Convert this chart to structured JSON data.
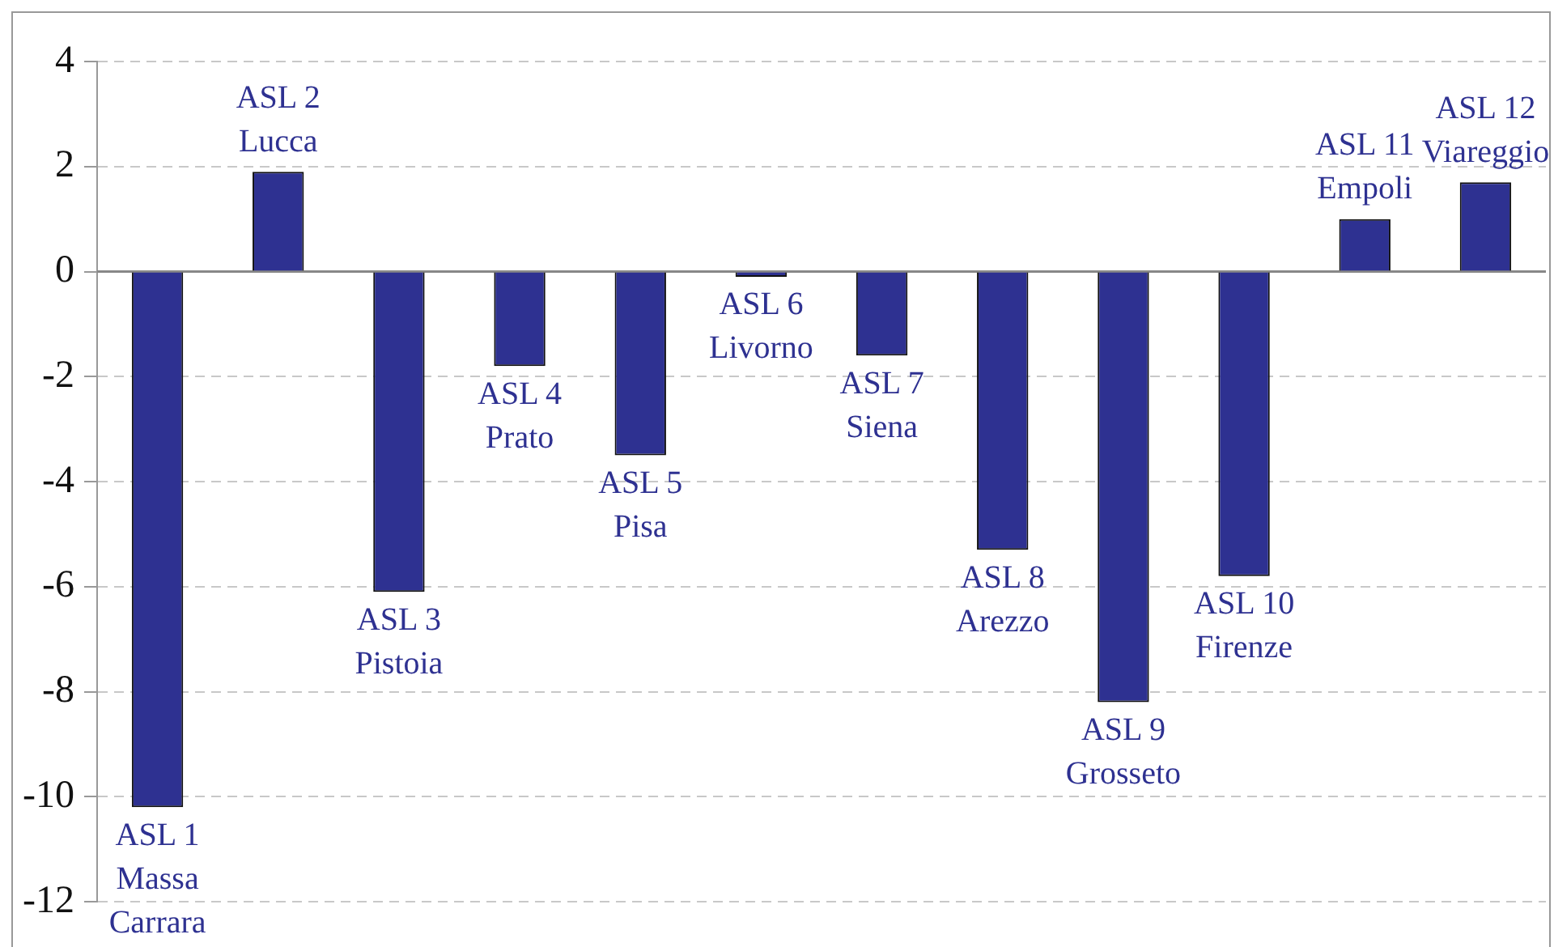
{
  "chart_data": {
    "type": "bar",
    "categories": [
      "ASL 1\nMassa\nCarrara",
      "ASL 2\nLucca",
      "ASL 3\nPistoia",
      "ASL 4\nPrato",
      "ASL 5\nPisa",
      "ASL 6\nLivorno",
      "ASL 7\nSiena",
      "ASL 8\nArezzo",
      "ASL 9\nGrosseto",
      "ASL 10\nFirenze",
      "ASL 11\nEmpoli",
      "ASL 12\nViareggio"
    ],
    "values": [
      -10.2,
      1.9,
      -6.1,
      -1.8,
      -3.5,
      -0.1,
      -1.6,
      -5.3,
      -8.2,
      -5.8,
      1.0,
      1.7
    ],
    "color": "#2e3191",
    "ylim": [
      -12,
      4
    ],
    "yticks": [
      -12,
      -10,
      -8,
      -6,
      -4,
      -2,
      0,
      2,
      4
    ],
    "grid": "y",
    "legend": false
  }
}
